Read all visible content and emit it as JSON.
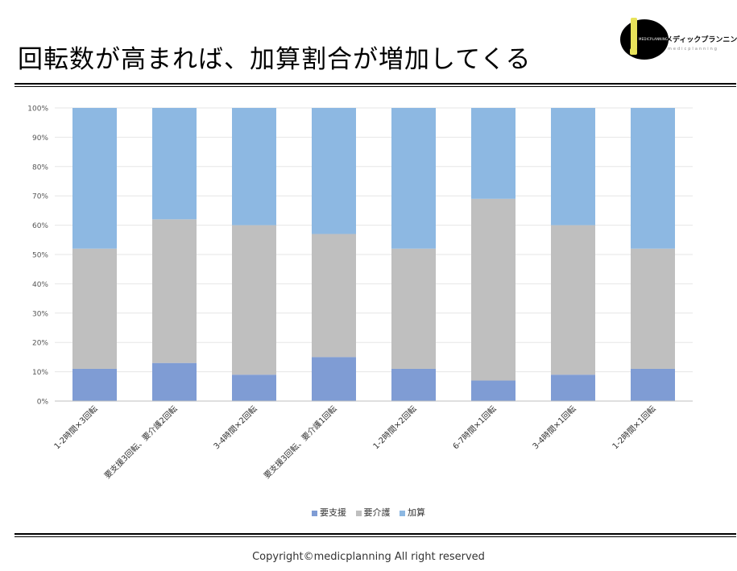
{
  "title": "回転数が高まれば、加算割合が増加してくる",
  "logo": {
    "brand": "メディックプランニング",
    "small_text": "MEDICPLANNING",
    "sub_text": "medicplanning"
  },
  "colors": {
    "support": "#7f9cd4",
    "care": "#bfbfbf",
    "addition": "#8db8e2"
  },
  "chart_data": {
    "type": "bar",
    "stacked": true,
    "categories": [
      "1-2時間×3回転",
      "要支援3回転、要介護2回転",
      "3-4時間×2回転",
      "要支援3回転、要介護1回転",
      "1-2時間×2回転",
      "6-7時間×1回転",
      "3-4時間×1回転",
      "1-2時間×1回転"
    ],
    "series": [
      {
        "name": "要支援",
        "color": "#7f9cd4",
        "values": [
          11,
          13,
          9,
          15,
          11,
          7,
          9,
          11
        ]
      },
      {
        "name": "要介護",
        "color": "#bfbfbf",
        "values": [
          41,
          49,
          51,
          42,
          41,
          62,
          51,
          41
        ]
      },
      {
        "name": "加算",
        "color": "#8db8e2",
        "values": [
          48,
          38,
          40,
          43,
          48,
          31,
          40,
          48
        ]
      }
    ],
    "yticks": [
      "0%",
      "10%",
      "20%",
      "30%",
      "40%",
      "50%",
      "60%",
      "70%",
      "80%",
      "90%",
      "100%"
    ],
    "ylim": [
      0,
      100
    ],
    "grid": true,
    "legend_position": "bottom"
  },
  "copyright": "Copyright©medicplanning All right reserved"
}
